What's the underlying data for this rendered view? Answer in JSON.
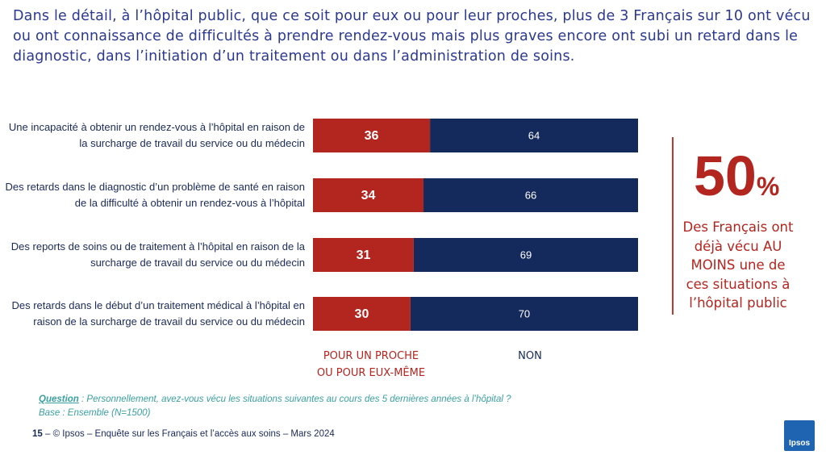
{
  "header": {
    "title": "Dans le détail, à l’hôpital public, que ce soit pour eux ou pour leur proches, plus de 3 Français sur 10 ont vécu ou ont connaissance de difficultés à prendre rendez-vous mais plus graves encore ont subi un retard dans le diagnostic, dans l’initiation d’un traitement ou dans l’administration de soins."
  },
  "chart_data": {
    "type": "stacked_barh",
    "categories": [
      "Une incapacité à obtenir un rendez-vous à l’hôpital en raison de la surcharge de travail du service ou du médecin",
      "Des retards dans le diagnostic d’un problème de santé en raison de la difficulté à obtenir un rendez-vous à l’hôpital",
      "Des reports de soins ou de traitement à l’hôpital en raison de la surcharge de travail du service ou du médecin",
      "Des retards dans le début d’un traitement médical à l’hôpital en raison de la surcharge de travail du service ou du médecin"
    ],
    "series": [
      {
        "name": "POUR UN PROCHE OU POUR EUX-MÊME",
        "color": "#b3251f",
        "values": [
          36,
          34,
          31,
          30
        ]
      },
      {
        "name": "NON",
        "color": "#142a5c",
        "values": [
          64,
          66,
          69,
          70
        ]
      }
    ],
    "xlim": [
      0,
      100
    ]
  },
  "callout": {
    "value": "50",
    "unit": "%",
    "text": "Des Français ont déjà vécu AU MOINS une de ces situations à l’hôpital public"
  },
  "note": {
    "question_label": "Question",
    "question": " : Personnellement, avez-vous vécu les situations suivantes au cours des 5 dernières années à l’hôpital ?",
    "base": "Base : Ensemble (N=1500)"
  },
  "footer": {
    "page": "15",
    "text": "–  © Ipsos – Enquête sur les Français et l’accès aux soins – Mars 2024",
    "logo": "Ipsos"
  }
}
